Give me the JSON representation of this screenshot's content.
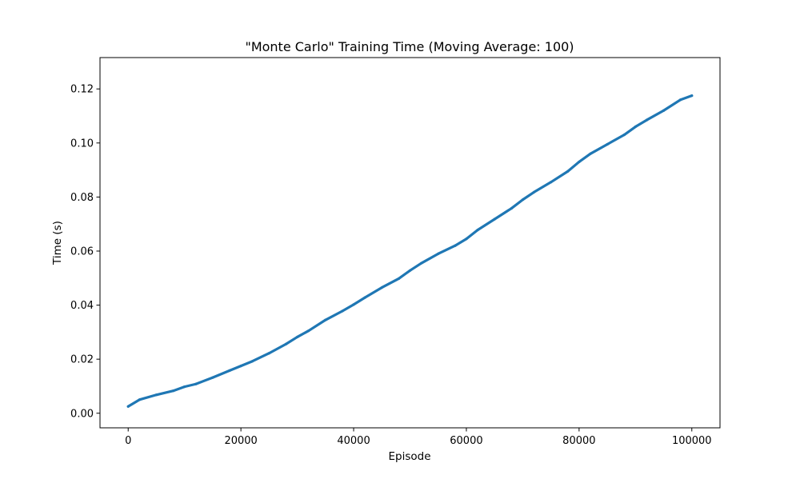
{
  "chart_data": {
    "type": "line",
    "title": "\"Monte Carlo\" Training Time (Moving Average: 100)",
    "xlabel": "Episode",
    "ylabel": "Time (s)",
    "xlim": [
      -5000,
      105000
    ],
    "ylim": [
      -0.0054,
      0.1316
    ],
    "xticks": [
      0,
      20000,
      40000,
      60000,
      80000,
      100000
    ],
    "xtick_labels": [
      "0",
      "20000",
      "40000",
      "60000",
      "80000",
      "100000"
    ],
    "yticks": [
      0.0,
      0.02,
      0.04,
      0.06,
      0.08,
      0.1,
      0.12
    ],
    "ytick_labels": [
      "0.00",
      "0.02",
      "0.04",
      "0.06",
      "0.08",
      "0.10",
      "0.12"
    ],
    "grid": false,
    "series": [
      {
        "color": "#1f77b4",
        "x": [
          0,
          2000,
          5000,
          8000,
          10000,
          12000,
          15000,
          18000,
          20000,
          22000,
          25000,
          28000,
          30000,
          32000,
          35000,
          38000,
          40000,
          42000,
          45000,
          48000,
          50000,
          52000,
          55000,
          58000,
          60000,
          62000,
          65000,
          68000,
          70000,
          72000,
          75000,
          78000,
          80000,
          82000,
          85000,
          88000,
          90000,
          92000,
          95000,
          98000,
          100000
        ],
        "y": [
          0.0025,
          0.005,
          0.0068,
          0.0083,
          0.0098,
          0.0108,
          0.0132,
          0.0158,
          0.0175,
          0.0192,
          0.0222,
          0.0256,
          0.0282,
          0.0305,
          0.0345,
          0.0378,
          0.0402,
          0.0428,
          0.0465,
          0.0498,
          0.0528,
          0.0555,
          0.059,
          0.062,
          0.0645,
          0.0678,
          0.0718,
          0.0758,
          0.079,
          0.0818,
          0.0855,
          0.0895,
          0.093,
          0.096,
          0.0995,
          0.103,
          0.106,
          0.1085,
          0.112,
          0.116,
          0.1175
        ]
      }
    ]
  }
}
